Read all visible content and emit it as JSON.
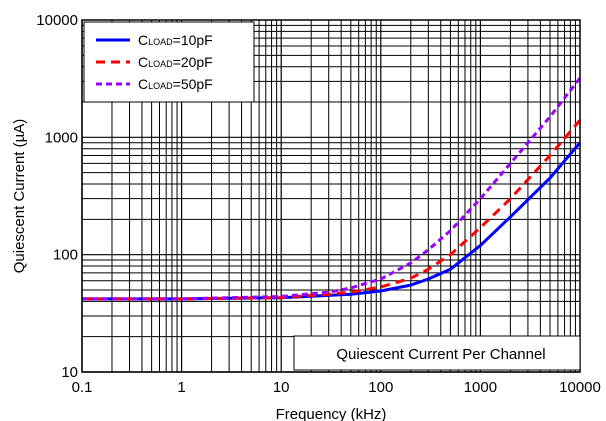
{
  "chart_data": {
    "type": "line",
    "title": "",
    "xlabel": "Frequency (kHz)",
    "ylabel": "Quiescent Current (µA)",
    "xscale": "log",
    "yscale": "log",
    "xlim": [
      0.1,
      10000
    ],
    "ylim": [
      10,
      10000
    ],
    "grid": true,
    "legend_position": "top-left",
    "annotation": "Quiescent Current Per Channel",
    "x_ticks": [
      "0.1",
      "1",
      "10",
      "100",
      "1000",
      "10000"
    ],
    "y_ticks": [
      "10",
      "100",
      "1000",
      "10000"
    ],
    "series": [
      {
        "name_prefix": "C",
        "name_sub": "LOAD",
        "name_suffix": "=10pF",
        "color": "#0000ff",
        "dash": "solid",
        "x": [
          0.1,
          1,
          10,
          30,
          50,
          100,
          200,
          300,
          500,
          1000,
          2000,
          5000,
          10000
        ],
        "y": [
          42,
          42,
          43,
          45,
          46,
          49,
          55,
          62,
          75,
          120,
          210,
          450,
          900
        ]
      },
      {
        "name_prefix": "C",
        "name_sub": "LOAD",
        "name_suffix": "=20pF",
        "color": "#ff0000",
        "dash": "dashed",
        "x": [
          0.1,
          1,
          10,
          30,
          50,
          100,
          200,
          300,
          500,
          1000,
          2000,
          5000,
          10000
        ],
        "y": [
          42,
          42,
          43,
          46,
          48,
          53,
          63,
          75,
          100,
          170,
          300,
          700,
          1400
        ]
      },
      {
        "name_prefix": "C",
        "name_sub": "LOAD",
        "name_suffix": "=50pF",
        "color": "#9900ff",
        "dash": "dashed-short",
        "x": [
          0.1,
          1,
          10,
          30,
          50,
          100,
          200,
          300,
          500,
          1000,
          2000,
          5000,
          10000
        ],
        "y": [
          42,
          42,
          44,
          48,
          52,
          62,
          85,
          110,
          160,
          300,
          600,
          1500,
          3200
        ]
      }
    ]
  }
}
